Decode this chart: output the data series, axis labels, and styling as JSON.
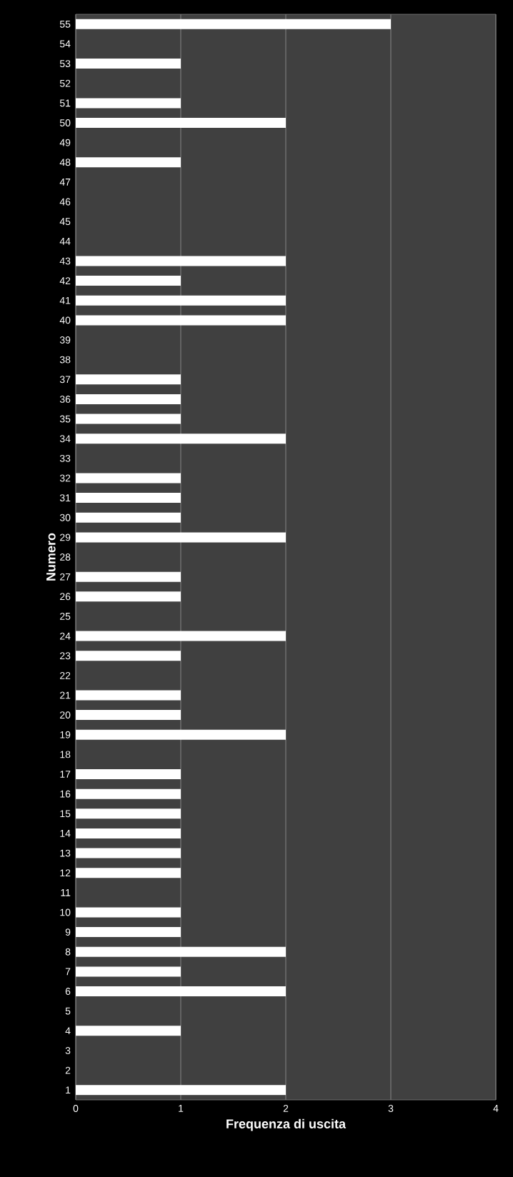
{
  "chart_data": {
    "type": "bar",
    "orientation": "horizontal",
    "xlabel": "Frequenza di uscita",
    "ylabel": "Numero",
    "categories": [
      "55",
      "54",
      "53",
      "52",
      "51",
      "50",
      "49",
      "48",
      "47",
      "46",
      "45",
      "44",
      "43",
      "42",
      "41",
      "40",
      "39",
      "38",
      "37",
      "36",
      "35",
      "34",
      "33",
      "32",
      "31",
      "30",
      "29",
      "28",
      "27",
      "26",
      "25",
      "24",
      "23",
      "22",
      "21",
      "20",
      "19",
      "18",
      "17",
      "16",
      "15",
      "14",
      "13",
      "12",
      "11",
      "10",
      "9",
      "8",
      "7",
      "6",
      "5",
      "4",
      "3",
      "2",
      "1"
    ],
    "values": [
      3,
      0,
      1,
      0,
      1,
      2,
      0,
      1,
      0,
      0,
      0,
      0,
      2,
      1,
      2,
      2,
      0,
      0,
      1,
      1,
      1,
      2,
      0,
      1,
      1,
      1,
      2,
      0,
      1,
      1,
      0,
      2,
      1,
      0,
      1,
      1,
      2,
      0,
      1,
      1,
      1,
      1,
      1,
      1,
      0,
      1,
      1,
      2,
      1,
      2,
      0,
      1,
      0,
      0,
      2
    ],
    "color": "#ffffff",
    "xlim": [
      0,
      4
    ],
    "xticks": [
      0,
      1,
      2,
      3,
      4
    ],
    "grid": "x"
  }
}
